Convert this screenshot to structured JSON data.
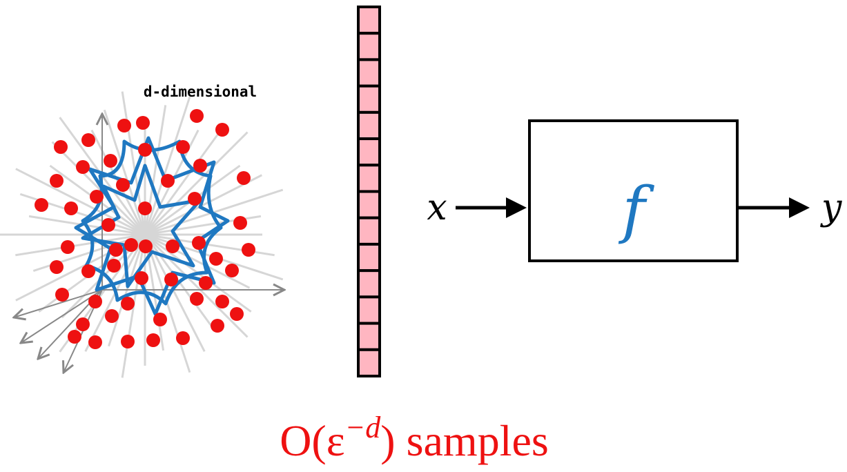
{
  "label": "d-dimensional",
  "input": "x",
  "function": "f",
  "output": "y",
  "formula": {
    "base": "O(ε",
    "exponent": "−d",
    "close": ")",
    "word": "samples"
  }
}
